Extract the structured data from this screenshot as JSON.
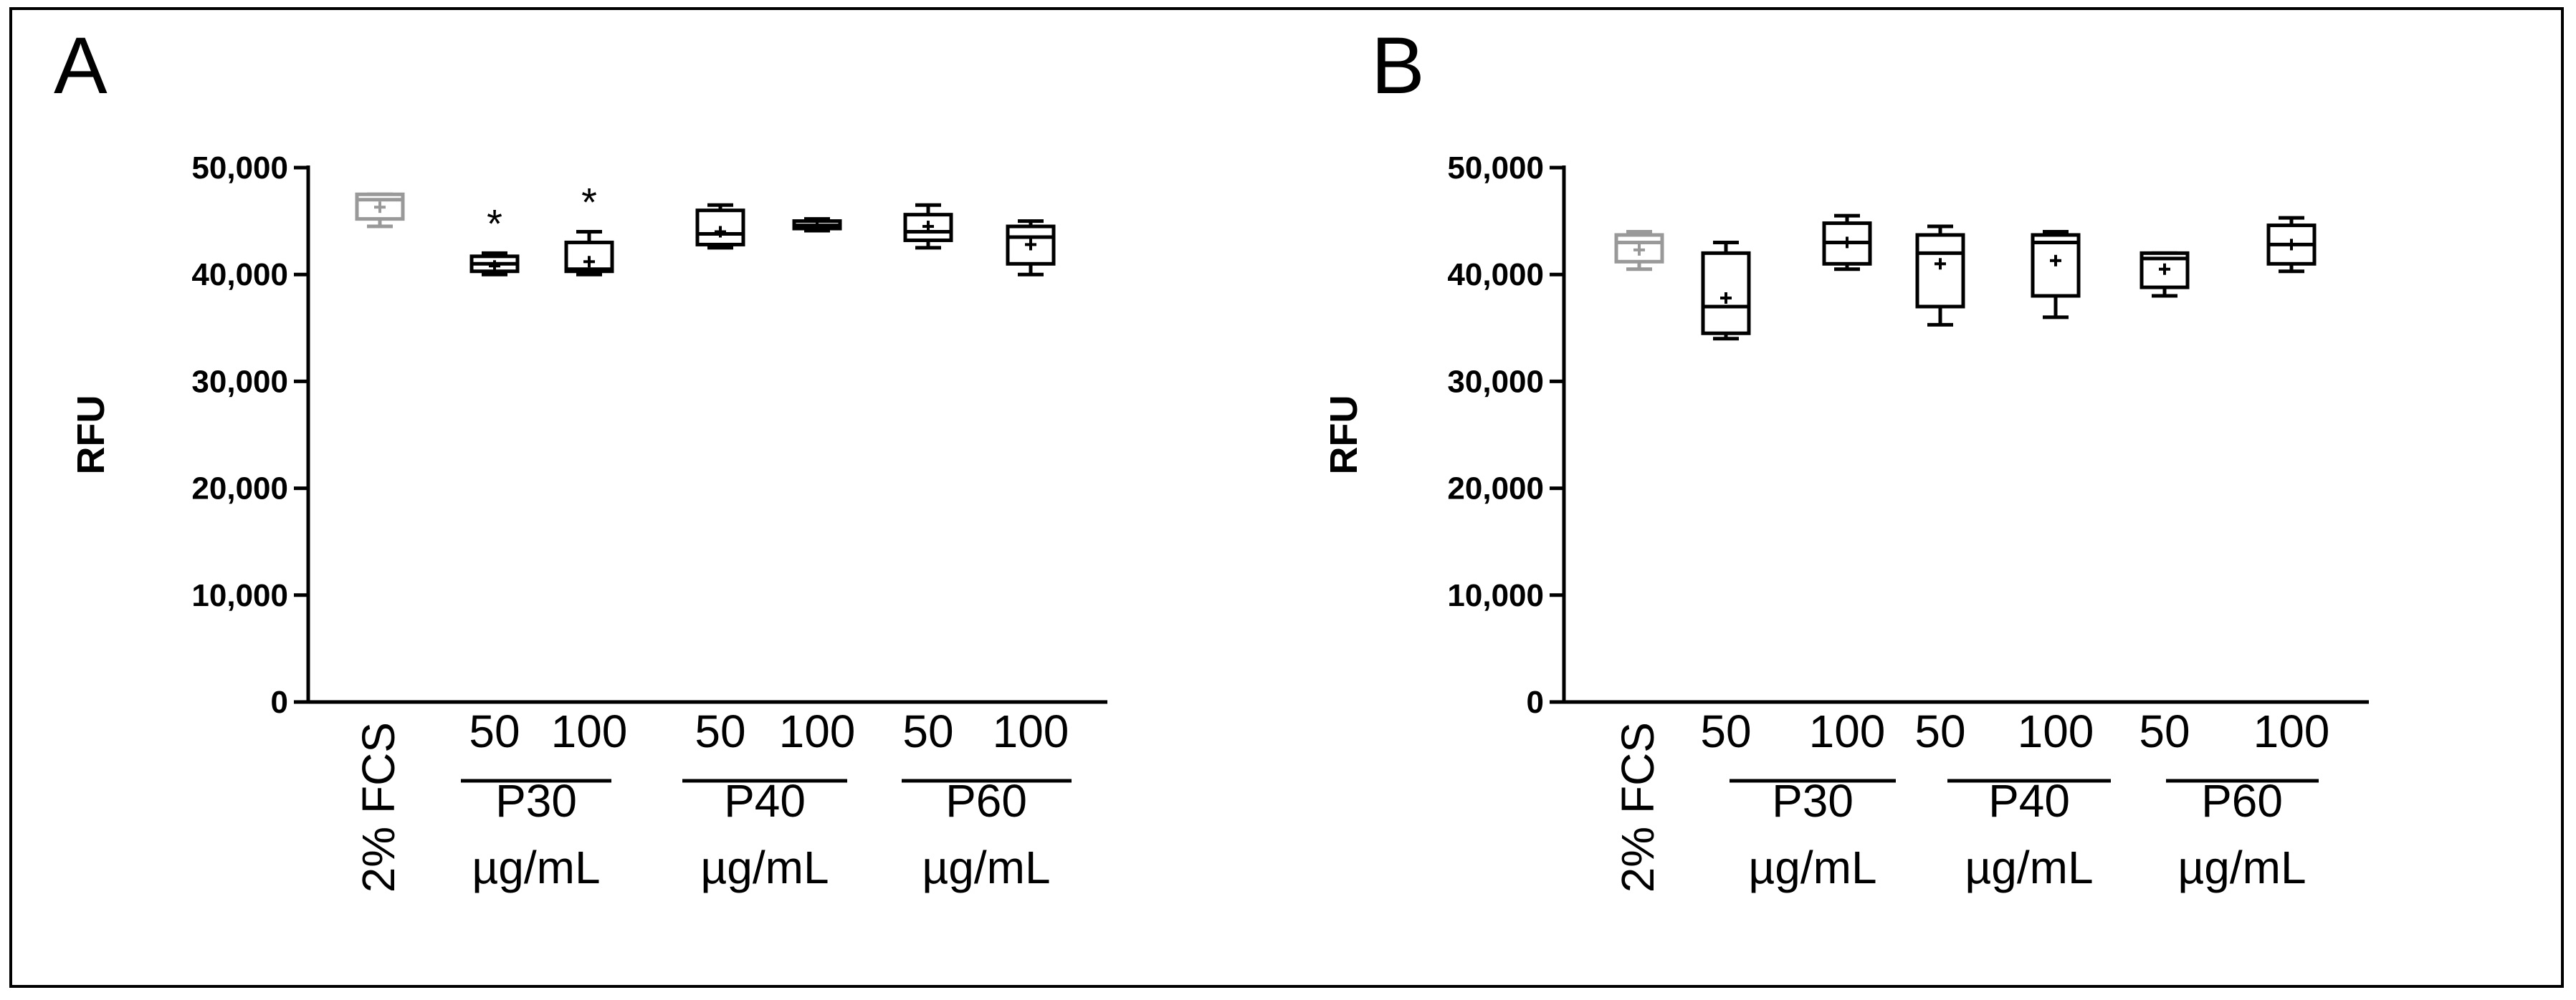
{
  "figure": {
    "border_color": "#000000",
    "box_colors": {
      "control": "#999999",
      "treatment": "#000000"
    }
  },
  "chart_data": [
    {
      "panel": "A",
      "type": "box",
      "title": "",
      "ylabel": "RFU",
      "ylim": [
        0,
        50000
      ],
      "yticks": [
        0,
        10000,
        20000,
        30000,
        40000,
        50000
      ],
      "ytick_labels": [
        "0",
        "10,000",
        "20,000",
        "30,000",
        "40,000",
        "50,000"
      ],
      "categories": [
        "2% FCS",
        "50",
        "100",
        "50",
        "100",
        "50",
        "100"
      ],
      "groups": [
        {
          "label": "P30",
          "unit": "µg/mL",
          "members": [
            1,
            2
          ]
        },
        {
          "label": "P40",
          "unit": "µg/mL",
          "members": [
            3,
            4
          ]
        },
        {
          "label": "P60",
          "unit": "µg/mL",
          "members": [
            5,
            6
          ]
        }
      ],
      "boxes": [
        {
          "min": 44500,
          "q1": 45200,
          "median": 47000,
          "q3": 47500,
          "max": 47500,
          "mean": 46300,
          "color": "#999999",
          "annotation": ""
        },
        {
          "min": 40000,
          "q1": 40300,
          "median": 41000,
          "q3": 41700,
          "max": 42000,
          "mean": 40800,
          "color": "#000000",
          "annotation": "*"
        },
        {
          "min": 40000,
          "q1": 40300,
          "median": 40500,
          "q3": 43000,
          "max": 44000,
          "mean": 41200,
          "color": "#000000",
          "annotation": "*"
        },
        {
          "min": 42500,
          "q1": 42800,
          "median": 43800,
          "q3": 46000,
          "max": 46500,
          "mean": 44000,
          "color": "#000000",
          "annotation": ""
        },
        {
          "min": 44100,
          "q1": 44300,
          "median": 44600,
          "q3": 45000,
          "max": 45200,
          "mean": 44600,
          "color": "#000000",
          "annotation": ""
        },
        {
          "min": 42500,
          "q1": 43200,
          "median": 44000,
          "q3": 45600,
          "max": 46500,
          "mean": 44500,
          "color": "#000000",
          "annotation": ""
        },
        {
          "min": 40000,
          "q1": 41000,
          "median": 43500,
          "q3": 44500,
          "max": 45000,
          "mean": 42800,
          "color": "#000000",
          "annotation": ""
        }
      ]
    },
    {
      "panel": "B",
      "type": "box",
      "title": "",
      "ylabel": "RFU",
      "ylim": [
        0,
        50000
      ],
      "yticks": [
        0,
        10000,
        20000,
        30000,
        40000,
        50000
      ],
      "ytick_labels": [
        "0",
        "10,000",
        "20,000",
        "30,000",
        "40,000",
        "50,000"
      ],
      "categories": [
        "2% FCS",
        "50",
        "100",
        "50",
        "100",
        "50",
        "100"
      ],
      "groups": [
        {
          "label": "P30",
          "unit": "µg/mL",
          "members": [
            1,
            2
          ]
        },
        {
          "label": "P40",
          "unit": "µg/mL",
          "members": [
            3,
            4
          ]
        },
        {
          "label": "P60",
          "unit": "µg/mL",
          "members": [
            5,
            6
          ]
        }
      ],
      "boxes": [
        {
          "min": 40500,
          "q1": 41200,
          "median": 43000,
          "q3": 43700,
          "max": 44000,
          "mean": 42300,
          "color": "#999999",
          "annotation": ""
        },
        {
          "min": 34000,
          "q1": 34500,
          "median": 37000,
          "q3": 42000,
          "max": 43000,
          "mean": 37800,
          "color": "#000000",
          "annotation": ""
        },
        {
          "min": 40500,
          "q1": 41000,
          "median": 43000,
          "q3": 44800,
          "max": 45500,
          "mean": 43000,
          "color": "#000000",
          "annotation": ""
        },
        {
          "min": 35300,
          "q1": 37000,
          "median": 42000,
          "q3": 43700,
          "max": 44500,
          "mean": 41000,
          "color": "#000000",
          "annotation": ""
        },
        {
          "min": 36000,
          "q1": 38000,
          "median": 43000,
          "q3": 43700,
          "max": 44000,
          "mean": 41300,
          "color": "#000000",
          "annotation": ""
        },
        {
          "min": 38000,
          "q1": 38800,
          "median": 41500,
          "q3": 42000,
          "max": 42000,
          "mean": 40500,
          "color": "#000000",
          "annotation": ""
        },
        {
          "min": 40300,
          "q1": 41000,
          "median": 42800,
          "q3": 44600,
          "max": 45300,
          "mean": 42800,
          "color": "#000000",
          "annotation": ""
        }
      ]
    }
  ]
}
